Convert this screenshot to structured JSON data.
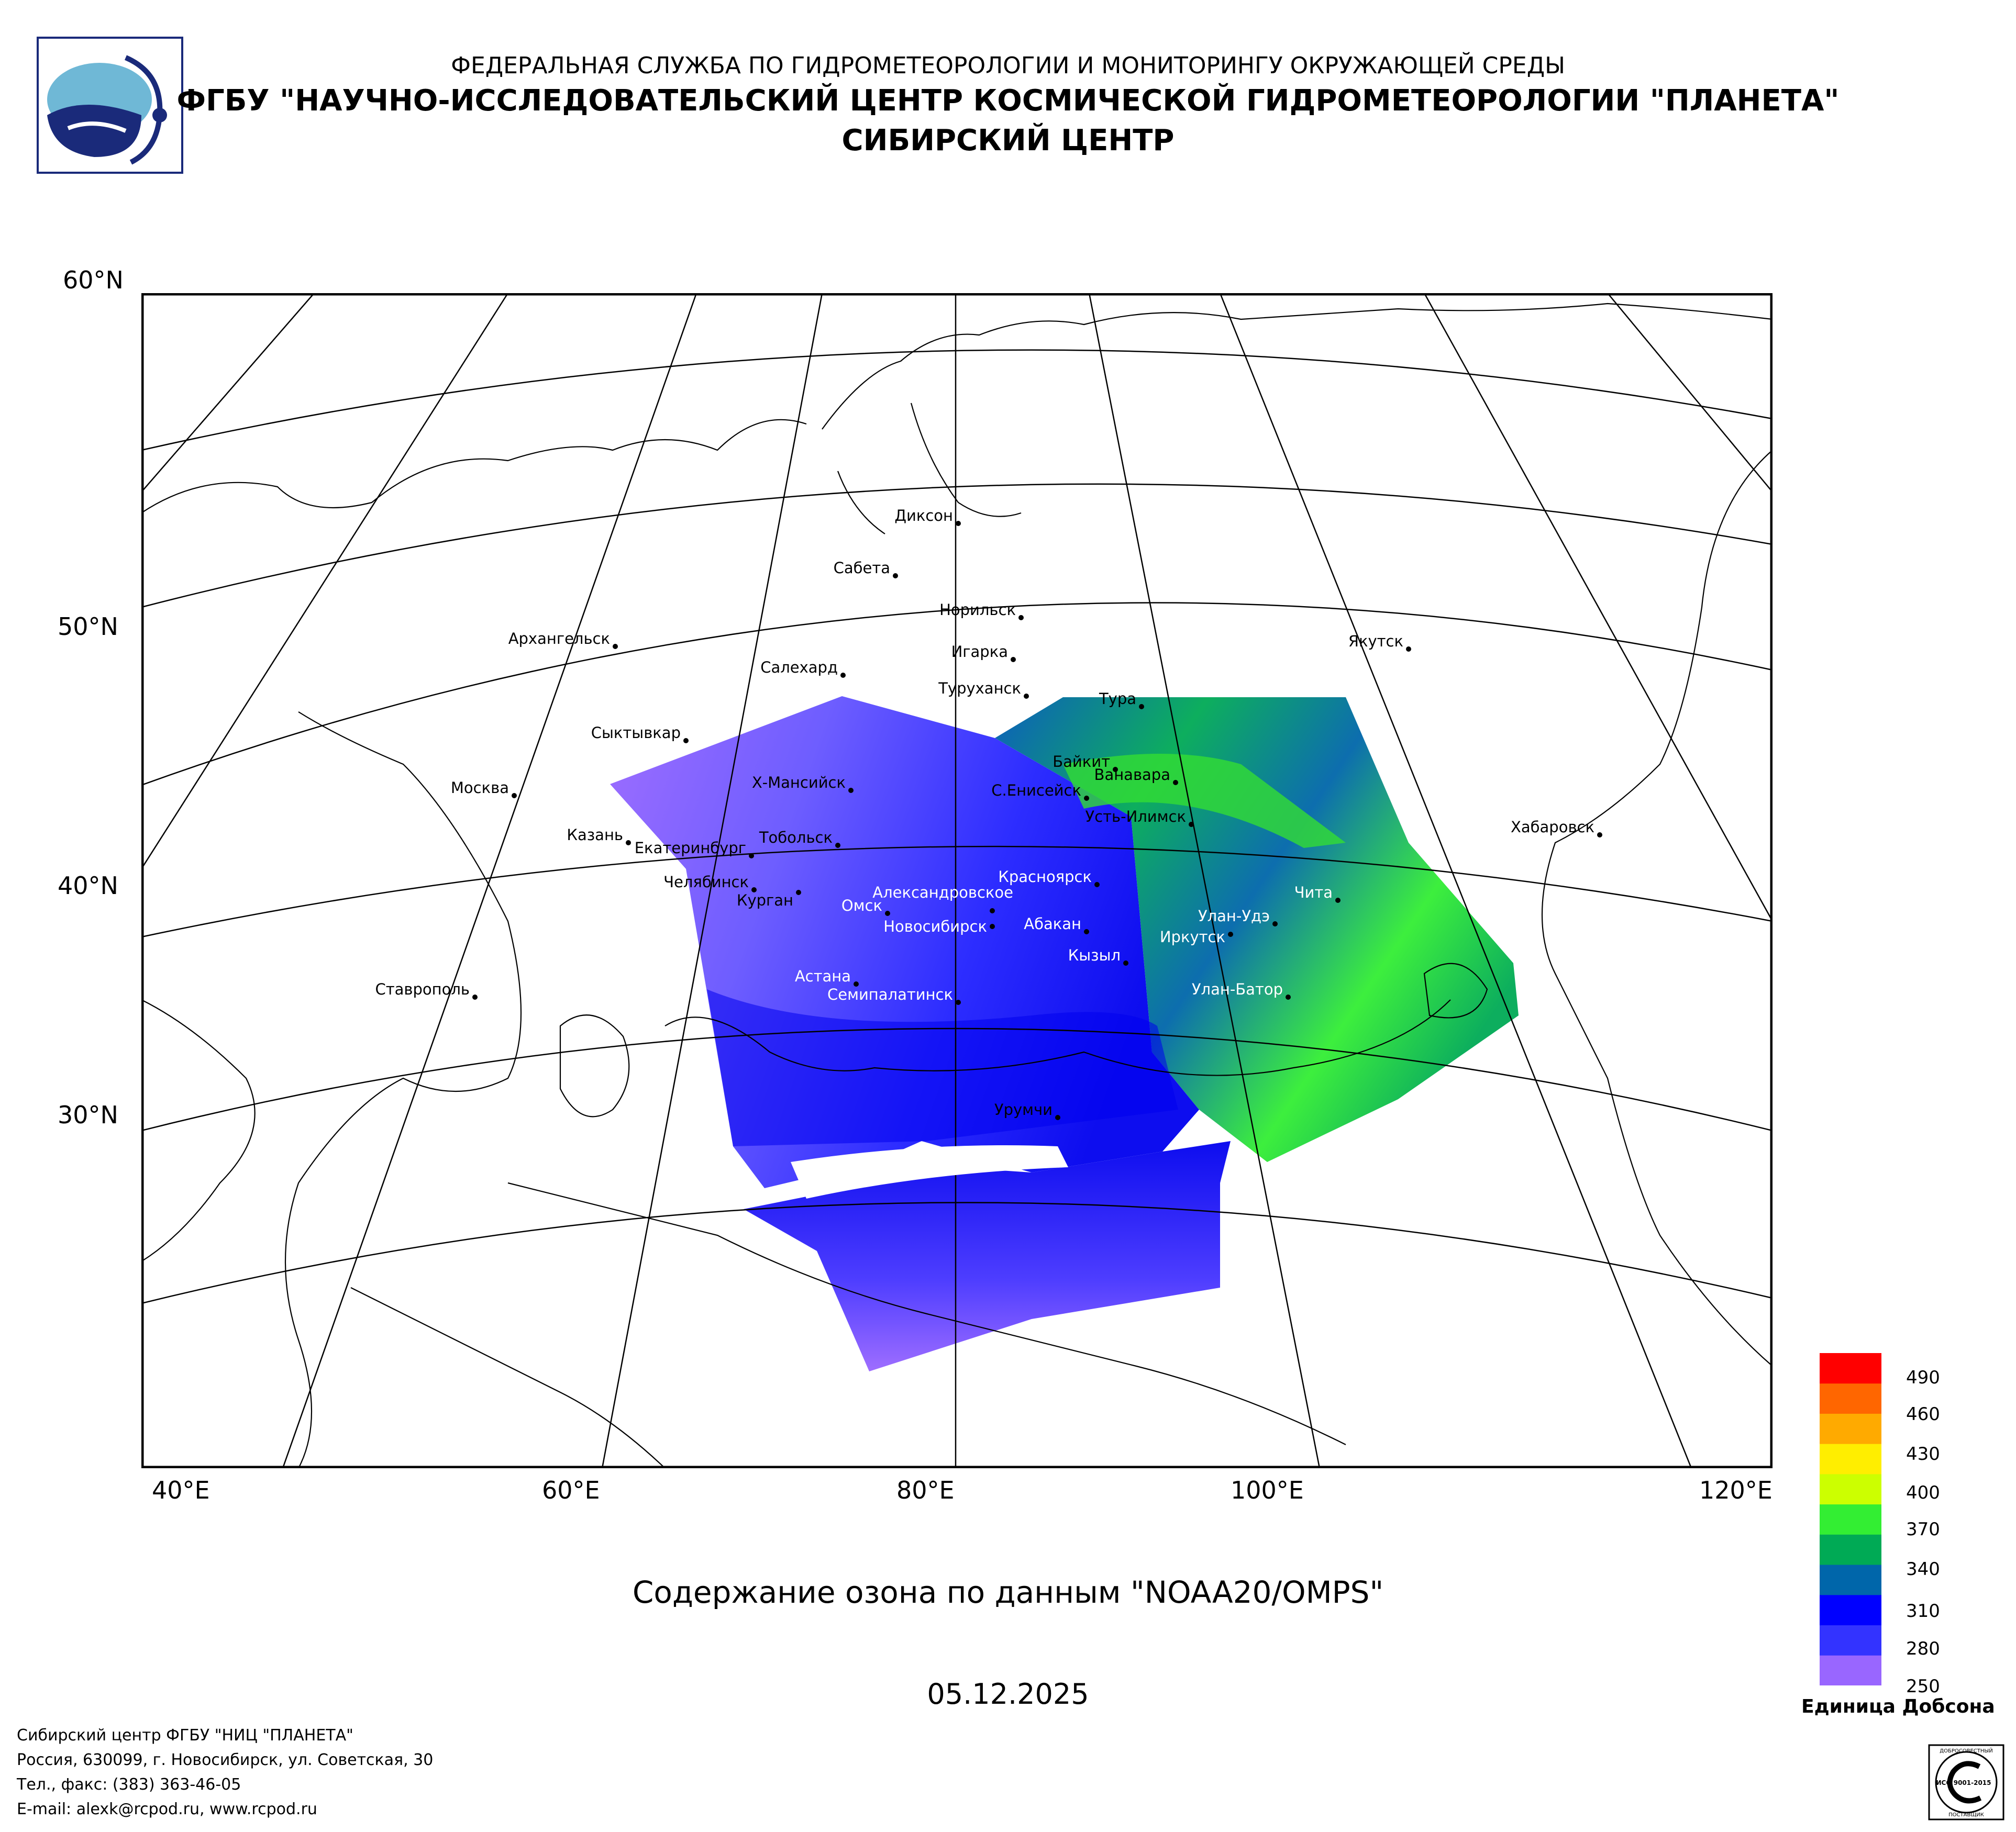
{
  "header": {
    "line1": "ФЕДЕРАЛЬНАЯ СЛУЖБА ПО ГИДРОМЕТЕОРОЛОГИИ И МОНИТОРИНГУ ОКРУЖАЮЩЕЙ СРЕДЫ",
    "line2": "ФГБУ \"НАУЧНО-ИССЛЕДОВАТЕЛЬСКИЙ ЦЕНТР КОСМИЧЕСКОЙ ГИДРОМЕТЕОРОЛОГИИ \"ПЛАНЕТА\"",
    "line3": "СИБИРСКИЙ ЦЕНТР"
  },
  "map": {
    "lat_labels": [
      "60°N",
      "50°N",
      "40°N",
      "30°N"
    ],
    "lon_labels": [
      "40°E",
      "60°E",
      "80°E",
      "100°E",
      "120°E"
    ],
    "cities": [
      {
        "name": "Диксон"
      },
      {
        "name": "Сабета"
      },
      {
        "name": "Норильск"
      },
      {
        "name": "Игарка"
      },
      {
        "name": "Архангельск"
      },
      {
        "name": "Салехард"
      },
      {
        "name": "Туруханск"
      },
      {
        "name": "Якутск"
      },
      {
        "name": "Тура"
      },
      {
        "name": "Сыктывкар"
      },
      {
        "name": "Байкит"
      },
      {
        "name": "Ванавара"
      },
      {
        "name": "Москва"
      },
      {
        "name": "Х-Мансийск"
      },
      {
        "name": "С.Енисейск"
      },
      {
        "name": "Усть-Илимск"
      },
      {
        "name": "Казань"
      },
      {
        "name": "Екатеринбург"
      },
      {
        "name": "Тобольск"
      },
      {
        "name": "Хабаровск"
      },
      {
        "name": "Челябинск"
      },
      {
        "name": "Курган"
      },
      {
        "name": "Александровское"
      },
      {
        "name": "Красноярск"
      },
      {
        "name": "Омск"
      },
      {
        "name": "Новосибирск"
      },
      {
        "name": "Абакан"
      },
      {
        "name": "Улан-Удэ"
      },
      {
        "name": "Иркутск"
      },
      {
        "name": "Чита"
      },
      {
        "name": "Кызыл"
      },
      {
        "name": "Астана"
      },
      {
        "name": "Семипалатинск"
      },
      {
        "name": "Улан-Батор"
      },
      {
        "name": "Ставрополь"
      },
      {
        "name": "Урумчи"
      }
    ]
  },
  "product_title": "Содержание озона по данным \"NOAA20/OMPS\"",
  "date": "05.12.2025",
  "legend": {
    "ticks": [
      "490",
      "460",
      "430",
      "400",
      "370",
      "340",
      "310",
      "280",
      "250"
    ],
    "unit": "Единица Добсона",
    "colors": [
      "#9966ff",
      "#3333ff",
      "#0000ff",
      "#0066aa",
      "#00aa55",
      "#33ee33",
      "#ccff00",
      "#ffee00",
      "#ffaa00",
      "#ff6600",
      "#ff0000"
    ]
  },
  "footer": {
    "line1": "Сибирский центр ФГБУ \"НИЦ \"ПЛАНЕТА\"",
    "line2": "Россия, 630099, г. Новосибирск, ул. Советская, 30",
    "line3": "Тел., факс: (383) 363-46-05",
    "line4": "E-mail: alexk@rcpod.ru, www.rcpod.ru"
  },
  "certificate": {
    "top": "ДОБРОСОВЕСТНЫЙ",
    "mid": "ИСО 9001-2015",
    "bottom": "ПОСТАВЩИК"
  }
}
